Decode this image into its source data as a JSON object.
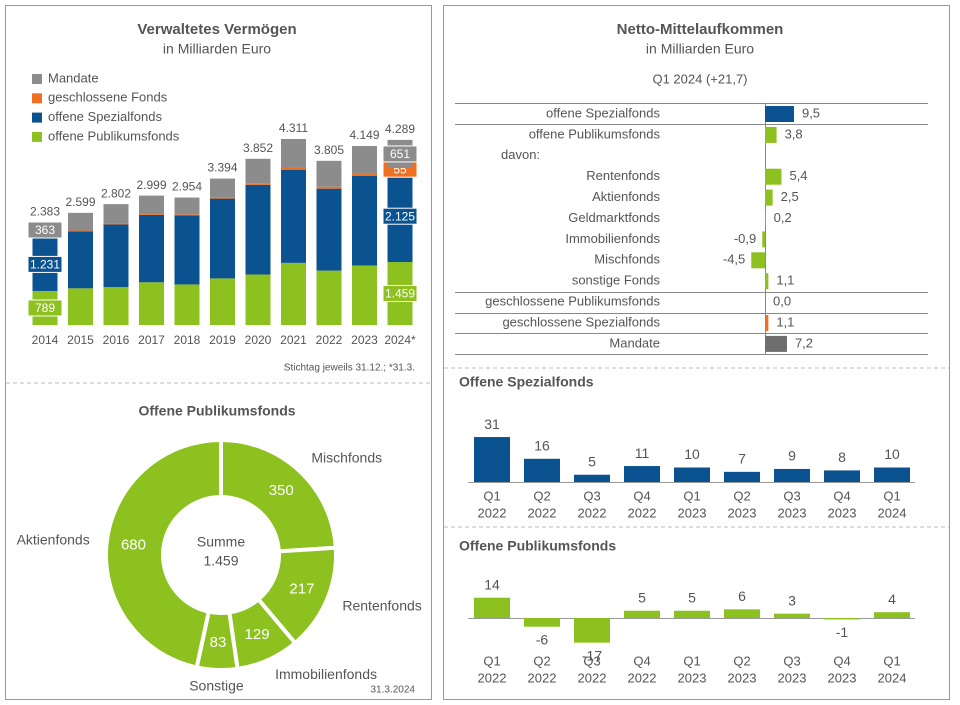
{
  "chart_data": [
    {
      "type": "stacked_bar",
      "title": "Verwaltetes Vermögen",
      "subtitle": "in Milliarden Euro",
      "categories": [
        "2014",
        "2015",
        "2016",
        "2017",
        "2018",
        "2019",
        "2020",
        "2021",
        "2022",
        "2023",
        "2024*"
      ],
      "series": [
        {
          "name": "offene Publikumsfonds",
          "color": "#8cc11f",
          "values": [
            789,
            850,
            880,
            990,
            940,
            1080,
            1170,
            1440,
            1260,
            1380,
            1459
          ],
          "value_labels": [
            "789",
            null,
            null,
            null,
            null,
            null,
            null,
            null,
            null,
            null,
            "1.459"
          ]
        },
        {
          "name": "offene Spezialfonds",
          "color": "#0b5290",
          "values": [
            1231,
            1320,
            1450,
            1560,
            1600,
            1850,
            2080,
            2160,
            1900,
            2080,
            2125
          ],
          "value_labels": [
            "1.231",
            null,
            null,
            null,
            null,
            null,
            null,
            null,
            null,
            null,
            "2.125"
          ]
        },
        {
          "name": "geschlossene Fonds",
          "color": "#f07022",
          "values": [
            0,
            20,
            20,
            20,
            25,
            30,
            35,
            40,
            45,
            50,
            55
          ],
          "value_labels": [
            null,
            null,
            null,
            null,
            null,
            null,
            null,
            null,
            null,
            null,
            "55"
          ]
        },
        {
          "name": "Mandate",
          "color": "#8c8c8c",
          "values": [
            363,
            409,
            452,
            429,
            389,
            434,
            567,
            671,
            600,
            639,
            651
          ],
          "value_labels": [
            "363",
            null,
            null,
            null,
            null,
            null,
            null,
            null,
            null,
            null,
            "651"
          ]
        }
      ],
      "totals": {
        "values": [
          2383,
          2599,
          2802,
          2999,
          2954,
          3394,
          3852,
          4311,
          3805,
          4149,
          4289
        ],
        "value_labels": [
          "2.383",
          "2.599",
          "2.802",
          "2.999",
          "2.954",
          "3.394",
          "3.852",
          "4.311",
          "3.805",
          "4.149",
          "4.289"
        ]
      },
      "footnote": "Stichtag jeweils 31.12.; *31.3."
    },
    {
      "type": "donut",
      "title": "Offene Publikumsfonds",
      "color": "#8cc11f",
      "categories": [
        "Mischfonds",
        "Rentenfonds",
        "Immobilienfonds",
        "Sonstige",
        "Aktienfonds"
      ],
      "values": [
        350,
        217,
        129,
        83,
        680
      ],
      "center_title": "Summe",
      "center_text": "1.459",
      "date": "31.3.2024"
    },
    {
      "type": "hbar",
      "title": "Netto-Mittelaufkommen",
      "subtitle": "in Milliarden Euro",
      "period": "Q1 2024 (+21,7)",
      "categories": [
        "offene Spezialfonds",
        "offene Publikumsfonds",
        "davon:",
        "Rentenfonds",
        "Aktienfonds",
        "Geldmarktfonds",
        "Immobilienfonds",
        "Mischfonds",
        "sonstige Fonds",
        "geschlossene Publikumsfonds",
        "geschlossene Spezialfonds",
        "Mandate"
      ],
      "values": [
        9.5,
        3.8,
        null,
        5.4,
        2.5,
        0.2,
        -0.9,
        -4.5,
        1.1,
        0.0,
        1.1,
        7.2
      ],
      "value_labels": [
        "9,5",
        "3,8",
        null,
        "5,4",
        "2,5",
        "0,2",
        "-0,9",
        "-4,5",
        "1,1",
        "0,0",
        "1,1",
        "7,2"
      ],
      "colors": [
        "#0b5290",
        "#8cc11f",
        null,
        "#8cc11f",
        "#8cc11f",
        "#8cc11f",
        "#8cc11f",
        "#8cc11f",
        "#8cc11f",
        "#8cc11f",
        "#f07022",
        "#6e6e6e"
      ]
    },
    {
      "type": "bar",
      "title": "Offene Spezialfonds",
      "color": "#0b5290",
      "categories": [
        [
          "Q1",
          "2022"
        ],
        [
          "Q2",
          "2022"
        ],
        [
          "Q3",
          "2022"
        ],
        [
          "Q4",
          "2022"
        ],
        [
          "Q1",
          "2023"
        ],
        [
          "Q2",
          "2023"
        ],
        [
          "Q3",
          "2023"
        ],
        [
          "Q4",
          "2023"
        ],
        [
          "Q1",
          "2024"
        ]
      ],
      "values": [
        31,
        16,
        5,
        11,
        10,
        7,
        9,
        8,
        10
      ]
    },
    {
      "type": "bar",
      "title": "Offene Publikumsfonds",
      "color": "#8cc11f",
      "categories": [
        [
          "Q1",
          "2022"
        ],
        [
          "Q2",
          "2022"
        ],
        [
          "Q3",
          "2022"
        ],
        [
          "Q4",
          "2022"
        ],
        [
          "Q1",
          "2023"
        ],
        [
          "Q2",
          "2023"
        ],
        [
          "Q3",
          "2023"
        ],
        [
          "Q4",
          "2023"
        ],
        [
          "Q1",
          "2024"
        ]
      ],
      "values": [
        14,
        -6,
        -17,
        5,
        5,
        6,
        3,
        -1,
        4
      ]
    }
  ]
}
